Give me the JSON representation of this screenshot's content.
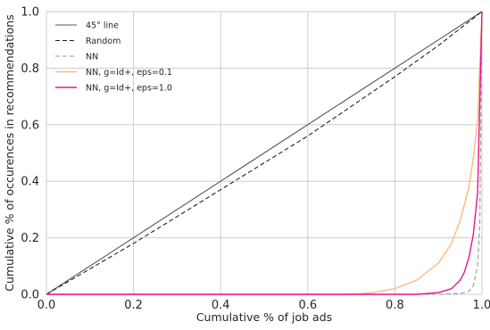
{
  "chart_data": {
    "type": "line",
    "title": "",
    "xlabel": "Cumulative % of job ads",
    "ylabel": "Cumulative % of occurences in recommendations",
    "xlim": [
      0.0,
      1.0
    ],
    "ylim": [
      0.0,
      1.0
    ],
    "xticks": [
      "0.0",
      "0.2",
      "0.4",
      "0.6",
      "0.8",
      "1.0"
    ],
    "yticks": [
      "0.0",
      "0.2",
      "0.4",
      "0.6",
      "0.8",
      "1.0"
    ],
    "grid": true,
    "legend_position": "top-left",
    "series": [
      {
        "name": "45° line",
        "color": "#555555",
        "style": "solid",
        "x": [
          0.0,
          1.0
        ],
        "y": [
          0.0,
          1.0
        ]
      },
      {
        "name": "Random",
        "color": "#222222",
        "style": "dashed",
        "x": [
          0.0,
          0.2,
          0.4,
          0.6,
          0.8,
          0.9,
          0.95,
          1.0
        ],
        "y": [
          0.0,
          0.18,
          0.37,
          0.56,
          0.77,
          0.88,
          0.94,
          1.0
        ]
      },
      {
        "name": "NN",
        "color": "#999999",
        "style": "dashed",
        "x": [
          0.0,
          0.9,
          0.95,
          0.97,
          0.98,
          0.99,
          0.995,
          1.0
        ],
        "y": [
          0.0,
          0.0,
          0.003,
          0.01,
          0.03,
          0.1,
          0.25,
          1.0
        ]
      },
      {
        "name": "NN, g=Id+, eps=0.1",
        "color": "#fdb97f",
        "style": "solid",
        "x": [
          0.0,
          0.7,
          0.75,
          0.8,
          0.85,
          0.9,
          0.93,
          0.95,
          0.97,
          0.98,
          0.99,
          1.0
        ],
        "y": [
          0.0,
          0.0,
          0.006,
          0.02,
          0.05,
          0.11,
          0.18,
          0.26,
          0.38,
          0.48,
          0.62,
          1.0
        ]
      },
      {
        "name": "NN, g=Id+, eps=1.0",
        "color": "#e7158f",
        "style": "solid",
        "x": [
          0.0,
          0.85,
          0.9,
          0.93,
          0.95,
          0.96,
          0.97,
          0.98,
          0.99,
          1.0
        ],
        "y": [
          0.0,
          0.0,
          0.006,
          0.02,
          0.05,
          0.08,
          0.13,
          0.21,
          0.36,
          1.0
        ]
      }
    ]
  }
}
